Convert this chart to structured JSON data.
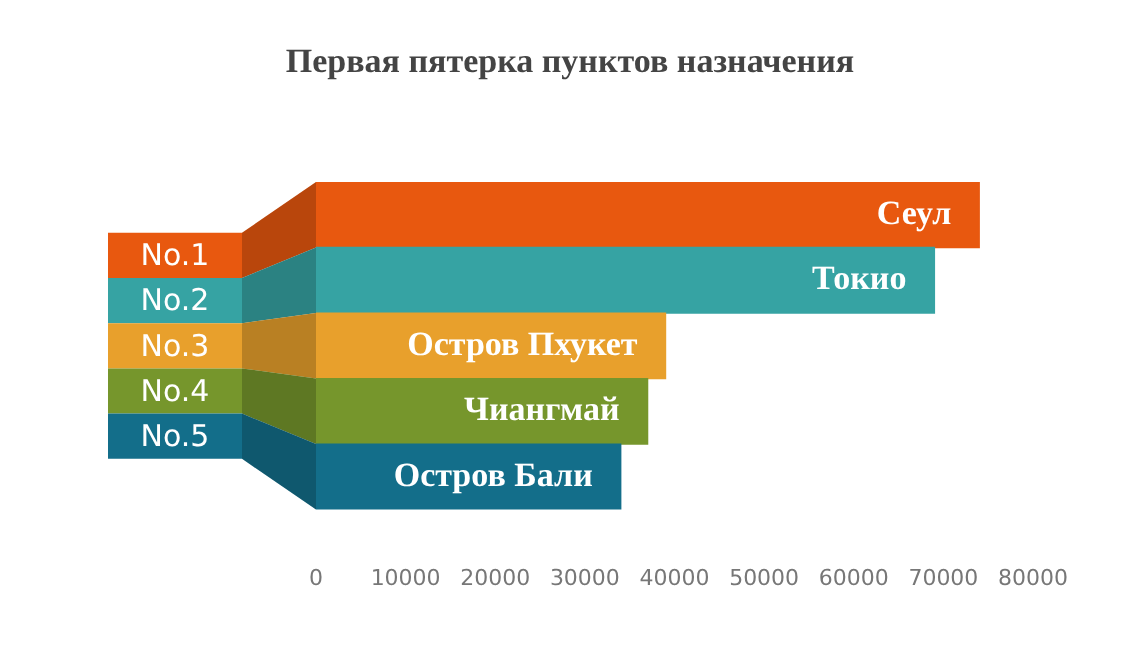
{
  "chart_data": {
    "type": "bar",
    "orientation": "horizontal",
    "title": "Первая пятерка пунктов назначения",
    "categories": [
      "Сеул",
      "Токио",
      "Остров Пхукет",
      "Чиангмай",
      "Остров Бали"
    ],
    "values": [
      74000,
      69000,
      39000,
      37000,
      34000
    ],
    "colors": [
      "#e8580f",
      "#36a3a3",
      "#e8a02c",
      "#76962c",
      "#136e8a"
    ],
    "xlim": [
      0,
      80000
    ],
    "xticks": [
      0,
      10000,
      20000,
      30000,
      40000,
      50000,
      60000,
      70000,
      80000
    ],
    "grid": false,
    "legend": false,
    "annotations": [
      "No.1",
      "No.2",
      "No.3",
      "No.4",
      "No.5"
    ]
  }
}
